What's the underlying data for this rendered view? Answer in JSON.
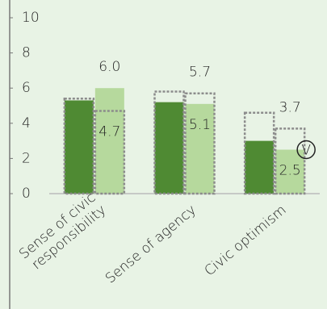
{
  "chart_data": {
    "type": "bar",
    "categories": [
      "Sense of civic responsibility",
      "Sense of agency",
      "Civic optimism"
    ],
    "series": [
      {
        "color": "#4f8a33",
        "values": [
          5.3,
          5.2,
          3.0
        ],
        "style": "solid"
      },
      {
        "color": "#b6d99d",
        "values": [
          6.0,
          5.1,
          2.5
        ],
        "value_labels": [
          "6.0",
          "5.1",
          "2.5"
        ],
        "style": "solid"
      },
      {
        "color": "#8c8c8c",
        "values": [
          5.4,
          5.8,
          4.6
        ],
        "style": "dotted"
      },
      {
        "color": "#8c8c8c",
        "values": [
          4.7,
          5.7,
          3.7
        ],
        "style": "dotted"
      }
    ],
    "ylim": [
      0,
      10
    ],
    "yticks": [
      0,
      2,
      4,
      6,
      8,
      10
    ],
    "annotation": "V"
  }
}
